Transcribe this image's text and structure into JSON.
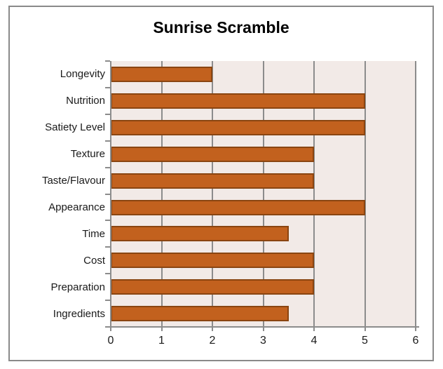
{
  "chart_data": {
    "type": "bar",
    "orientation": "horizontal",
    "title": "Sunrise Scramble",
    "categories": [
      "Longevity",
      "Nutrition",
      "Satiety Level",
      "Texture",
      "Taste/Flavour",
      "Appearance",
      "Time",
      "Cost",
      "Preparation",
      "Ingredients"
    ],
    "values": [
      2,
      5,
      5,
      4,
      4,
      5,
      3.5,
      4,
      4,
      3.5
    ],
    "x_ticks": [
      "0",
      "1",
      "2",
      "3",
      "4",
      "5",
      "6"
    ],
    "xlim": [
      0,
      6
    ],
    "xlabel": "",
    "ylabel": "",
    "grid": true,
    "legend": false,
    "colors": {
      "bar_fill": "#C2611E",
      "bar_border": "#8A4511",
      "plot_bg": "#F2EAE7",
      "gridline": "#8C8C8C",
      "axis_line": "#8C8C8C",
      "frame_border": "#8A8A8A",
      "text": "#1A1A1A",
      "title_text": "#000000"
    }
  }
}
